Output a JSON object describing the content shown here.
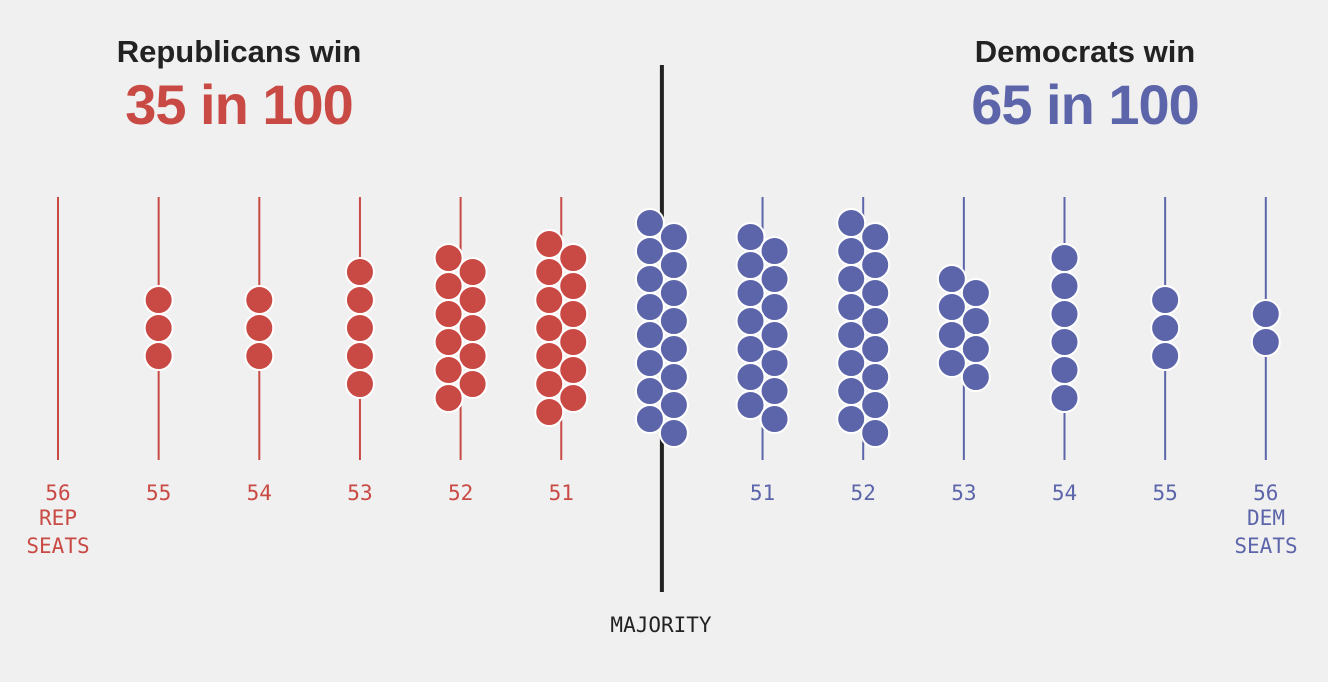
{
  "chart_data": {
    "type": "dot",
    "left_title": "Republicans win",
    "left_headline": "35 in 100",
    "right_title": "Democrats win",
    "right_headline": "65 in 100",
    "rep_note": "REP SEATS",
    "dem_note": "DEM SEATS",
    "majority_label": "MAJORITY",
    "series": [
      {
        "color": "#c94a44",
        "categories": [
          "56",
          "55",
          "54",
          "53",
          "52",
          "51"
        ],
        "values": [
          0,
          3,
          3,
          5,
          11,
          13
        ]
      },
      {
        "color": "#5c65aa",
        "categories": [
          null,
          "51",
          "52",
          "53",
          "54",
          "55",
          "56"
        ],
        "values": [
          16,
          14,
          16,
          8,
          6,
          3,
          2
        ]
      }
    ]
  }
}
